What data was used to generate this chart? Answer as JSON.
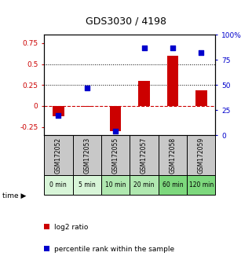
{
  "title": "GDS3030 / 4198",
  "samples": [
    "GSM172052",
    "GSM172053",
    "GSM172055",
    "GSM172057",
    "GSM172058",
    "GSM172059"
  ],
  "time_labels": [
    "0 min",
    "5 min",
    "10 min",
    "20 min",
    "60 min",
    "120 min"
  ],
  "log2_ratio": [
    -0.12,
    -0.01,
    -0.3,
    0.3,
    0.6,
    0.19
  ],
  "percentile_rank": [
    20,
    47,
    4,
    87,
    87,
    82
  ],
  "left_ylim": [
    -0.35,
    0.85
  ],
  "right_ylim": [
    0,
    100
  ],
  "left_yticks": [
    -0.25,
    0,
    0.25,
    0.5,
    0.75
  ],
  "right_yticks": [
    0,
    25,
    50,
    75,
    100
  ],
  "hlines": [
    0.5,
    0.25
  ],
  "red_color": "#cc0000",
  "blue_color": "#0000cc",
  "bar_width": 0.4,
  "dot_size": 22,
  "gray_bg": "#c8c8c8",
  "time_green_colors": [
    "#d8f5d8",
    "#d8f5d8",
    "#b0e8b0",
    "#b0e8b0",
    "#7dd87d",
    "#7dd87d"
  ]
}
